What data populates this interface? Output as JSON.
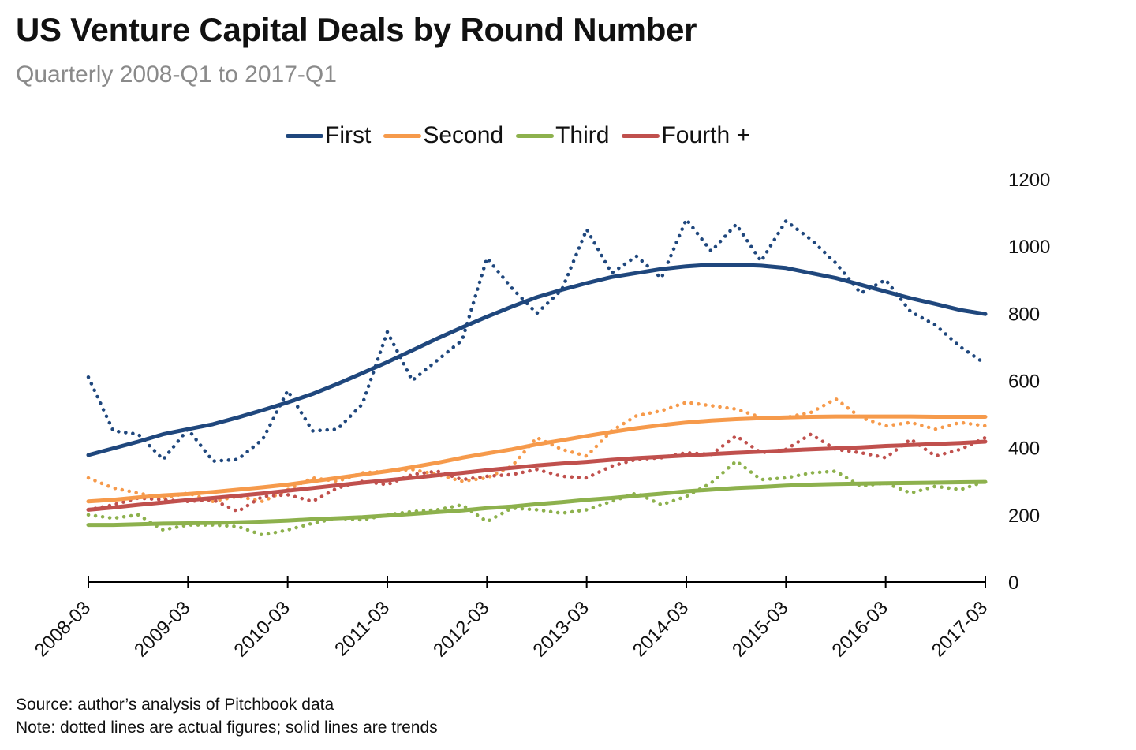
{
  "header": {
    "title": "US Venture Capital Deals by Round Number",
    "subtitle": "Quarterly 2008-Q1 to 2017-Q1"
  },
  "footer": {
    "source": "Source: author’s analysis of Pitchbook data",
    "note": "Note: dotted lines are actual figures; solid lines are trends"
  },
  "chart_data": {
    "type": "line",
    "title": "US Venture Capital Deals by Round Number",
    "subtitle": "Quarterly 2008-Q1 to 2017-Q1",
    "xlabel": "",
    "ylabel": "",
    "x_ticks": [
      "2008-03",
      "2009-03",
      "2010-03",
      "2011-03",
      "2012-03",
      "2013-03",
      "2014-03",
      "2015-03",
      "2016-03",
      "2017-03"
    ],
    "x": [
      "2008-03",
      "2008-06",
      "2008-09",
      "2008-12",
      "2009-03",
      "2009-06",
      "2009-09",
      "2009-12",
      "2010-03",
      "2010-06",
      "2010-09",
      "2010-12",
      "2011-03",
      "2011-06",
      "2011-09",
      "2011-12",
      "2012-03",
      "2012-06",
      "2012-09",
      "2012-12",
      "2013-03",
      "2013-06",
      "2013-09",
      "2013-12",
      "2014-03",
      "2014-06",
      "2014-09",
      "2014-12",
      "2015-03",
      "2015-06",
      "2015-09",
      "2015-12",
      "2016-03",
      "2016-06",
      "2016-09",
      "2016-12",
      "2017-03"
    ],
    "ylim": [
      0,
      1200
    ],
    "y_ticks": [
      0,
      200,
      400,
      600,
      800,
      1000,
      1200
    ],
    "y_axis_position": "right",
    "grid": false,
    "legend_position": "top-center",
    "series": [
      {
        "name": "First",
        "color": "#1f477d",
        "actual": [
          610,
          450,
          440,
          365,
          455,
          360,
          365,
          425,
          570,
          450,
          455,
          530,
          745,
          600,
          660,
          720,
          965,
          875,
          800,
          870,
          1050,
          920,
          970,
          905,
          1080,
          985,
          1065,
          955,
          1075,
          1020,
          950,
          860,
          900,
          805,
          765,
          700,
          650
        ],
        "trend": [
          378,
          398,
          418,
          440,
          455,
          470,
          490,
          512,
          535,
          560,
          590,
          622,
          655,
          690,
          725,
          758,
          790,
          820,
          848,
          870,
          890,
          908,
          920,
          932,
          940,
          945,
          945,
          942,
          935,
          920,
          905,
          885,
          865,
          845,
          828,
          810,
          798
        ]
      },
      {
        "name": "Second",
        "color": "#f69a4b",
        "actual": [
          310,
          280,
          265,
          250,
          265,
          240,
          255,
          240,
          275,
          310,
          300,
          325,
          330,
          335,
          320,
          300,
          310,
          345,
          430,
          395,
          375,
          450,
          495,
          510,
          535,
          525,
          515,
          490,
          490,
          505,
          545,
          490,
          465,
          475,
          455,
          475,
          465
        ],
        "trend": [
          240,
          245,
          252,
          258,
          262,
          268,
          275,
          282,
          290,
          300,
          310,
          320,
          330,
          342,
          355,
          370,
          383,
          395,
          410,
          422,
          435,
          447,
          458,
          467,
          475,
          481,
          485,
          488,
          490,
          492,
          493,
          493,
          493,
          493,
          492,
          492,
          492
        ]
      },
      {
        "name": "Third",
        "color": "#8db14d",
        "actual": [
          200,
          190,
          200,
          155,
          170,
          170,
          165,
          140,
          155,
          175,
          190,
          185,
          200,
          210,
          215,
          230,
          180,
          220,
          215,
          205,
          215,
          240,
          265,
          230,
          255,
          295,
          360,
          305,
          310,
          325,
          330,
          285,
          295,
          265,
          285,
          275,
          300
        ],
        "trend": [
          170,
          170,
          172,
          174,
          175,
          176,
          178,
          180,
          183,
          187,
          190,
          193,
          198,
          203,
          208,
          213,
          220,
          225,
          232,
          238,
          245,
          250,
          257,
          263,
          270,
          275,
          280,
          283,
          287,
          290,
          292,
          293,
          294,
          295,
          296,
          297,
          298
        ]
      },
      {
        "name": "Fourth +",
        "color": "#c0504d",
        "actual": [
          215,
          230,
          250,
          245,
          240,
          245,
          210,
          255,
          260,
          240,
          280,
          300,
          290,
          320,
          330,
          305,
          315,
          320,
          335,
          315,
          310,
          345,
          365,
          370,
          385,
          380,
          435,
          385,
          395,
          440,
          395,
          385,
          370,
          425,
          375,
          395,
          430
        ],
        "trend": [
          215,
          222,
          230,
          237,
          244,
          250,
          257,
          264,
          272,
          280,
          288,
          296,
          303,
          310,
          318,
          325,
          333,
          340,
          347,
          353,
          358,
          364,
          369,
          373,
          377,
          381,
          385,
          388,
          392,
          395,
          398,
          401,
          405,
          408,
          411,
          414,
          418
        ]
      }
    ]
  }
}
